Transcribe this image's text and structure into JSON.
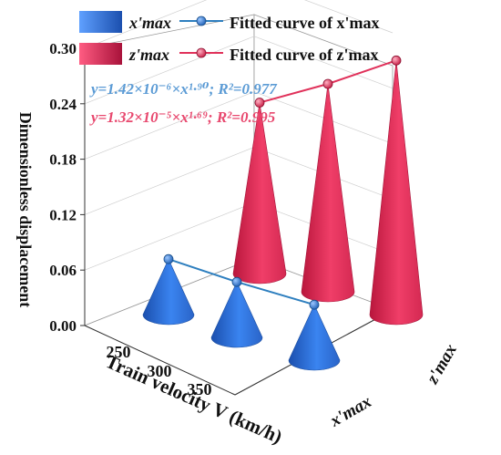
{
  "chart_data": {
    "type": "bar",
    "subtype": "3d-cone",
    "ylabel": "Dimensionless displacement",
    "xlabel": "Train velocity V (km/h)",
    "depth_categories": [
      "x'max",
      "z'max"
    ],
    "categories": [
      250,
      300,
      350
    ],
    "ylim": [
      0,
      0.3
    ],
    "yticks": [
      "0.00",
      "0.06",
      "0.12",
      "0.18",
      "0.24",
      "0.30"
    ],
    "grid": true,
    "legend_position": "top",
    "series": [
      {
        "name": "x'max",
        "fit_name": "Fitted curve of x'max",
        "color": "#2e6fd1",
        "values": [
          0.06,
          0.06,
          0.06
        ],
        "equation": "y=1.42×10⁻⁶×x¹·⁹⁰; R²=0.977",
        "equation_color": "#5b9bd5"
      },
      {
        "name": "z'max",
        "fit_name": "Fitted curve of z'max",
        "color": "#e0315a",
        "values": [
          0.185,
          0.225,
          0.275
        ],
        "equation": "y=1.32×10⁻⁵×x¹·⁶⁹; R²=0.995",
        "equation_color": "#e8486e"
      }
    ]
  }
}
